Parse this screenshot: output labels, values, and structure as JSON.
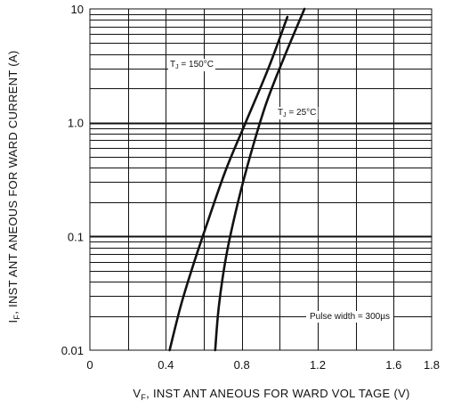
{
  "chart_data": {
    "type": "line",
    "x_scale": "linear",
    "y_scale": "log",
    "xlim": [
      0,
      1.8
    ],
    "ylim": [
      0.01,
      10
    ],
    "x_ticks": [
      {
        "value": 0,
        "label": "0"
      },
      {
        "value": 0.4,
        "label": "0.4"
      },
      {
        "value": 0.8,
        "label": "0.8"
      },
      {
        "value": 1.2,
        "label": "1.2"
      },
      {
        "value": 1.6,
        "label": "1.6"
      },
      {
        "value": 1.8,
        "label": "1.8"
      }
    ],
    "y_ticks": [
      {
        "value": 0.01,
        "label": "0.01"
      },
      {
        "value": 0.1,
        "label": "0.1"
      },
      {
        "value": 1.0,
        "label": "1.0"
      },
      {
        "value": 10,
        "label": "10"
      }
    ],
    "xlabel": {
      "main": "V",
      "sub": "F",
      "rest": ", INST ANT ANEOUS   FOR WARD  VOL TAGE  (V)"
    },
    "ylabel": {
      "main": "I",
      "sub": "F",
      "rest": ", INST ANT ANEOUS   FOR WARD  CURRENT   (A)"
    },
    "grid": true,
    "series": [
      {
        "name": {
          "main": "T",
          "sub": "J",
          "rest": " = 150°C"
        },
        "x": [
          0.42,
          0.48,
          0.55,
          0.63,
          0.72,
          0.82,
          0.94,
          1.04
        ],
        "y": [
          0.01,
          0.025,
          0.06,
          0.15,
          0.4,
          1.0,
          3.0,
          8.5
        ]
      },
      {
        "name": {
          "main": "T",
          "sub": "J",
          "rest": " = 25°C"
        },
        "x": [
          0.66,
          0.68,
          0.72,
          0.78,
          0.85,
          0.93,
          1.03,
          1.13
        ],
        "y": [
          0.01,
          0.025,
          0.07,
          0.2,
          0.55,
          1.5,
          4.0,
          10
        ]
      }
    ],
    "annotations": [
      {
        "text": "Pulse  width = 300µs"
      }
    ]
  }
}
